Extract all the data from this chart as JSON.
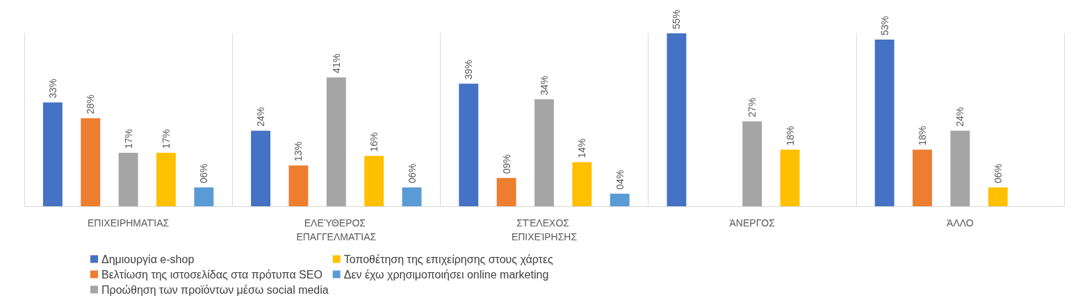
{
  "chart_data": {
    "type": "bar",
    "categories": [
      "ΕΠΙΧΕΙΡΗΜΑΤΊΑΣ",
      "ΕΛΕΎΘΕΡΟΣ ΕΠΑΓΓΕΛΜΑΤΊΑΣ",
      "ΣΤΈΛΕΧΟΣ ΕΠΙΧΕΊΡΗΣΗΣ",
      "ΆΝΕΡΓΟΣ",
      "ΆΛΛΟ"
    ],
    "series": [
      {
        "name": "Δημιουργία e-shop",
        "color": "#4472c4",
        "values": [
          33,
          24,
          39,
          55,
          53
        ],
        "value_labels": [
          "33%",
          "24%",
          "39%",
          "55%",
          "53%"
        ]
      },
      {
        "name": "Βελτίωση της ιστοσελίδας στα πρότυπα SEO",
        "color": "#ed7d31",
        "values": [
          28,
          13,
          9,
          null,
          18
        ],
        "value_labels": [
          "28%",
          "13%",
          "09%",
          null,
          "18%"
        ]
      },
      {
        "name": "Προώθηση των προϊόντων μέσω social media",
        "color": "#a5a5a5",
        "values": [
          17,
          41,
          34,
          27,
          24
        ],
        "value_labels": [
          "17%",
          "41%",
          "34%",
          "27%",
          "24%"
        ]
      },
      {
        "name": "Τοποθέτηση της επιχείρησης στους χάρτες",
        "color": "#ffc000",
        "values": [
          17,
          16,
          14,
          18,
          6
        ],
        "value_labels": [
          "17%",
          "16%",
          "14%",
          "18%",
          "06%"
        ]
      },
      {
        "name": "Δεν έχω χρησιμοποιήσει online marketing",
        "color": "#5b9bd5",
        "values": [
          6,
          6,
          4,
          null,
          null
        ],
        "value_labels": [
          "06%",
          "06%",
          "04%",
          null,
          null
        ]
      }
    ],
    "grid": "x",
    "legend": "bottom left",
    "tick_labels": "x"
  }
}
